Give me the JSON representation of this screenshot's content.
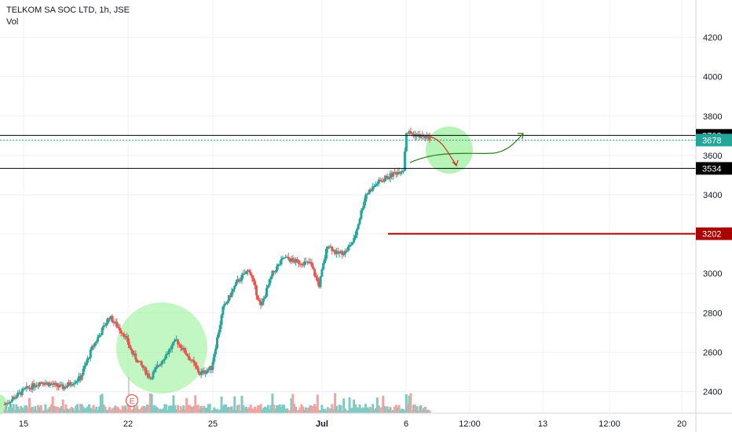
{
  "legend": {
    "title": "TELKOM SA SOC LTD, 1h, JSE",
    "indicator": "Vol"
  },
  "colors": {
    "up": "#26a69a",
    "down": "#ef5350",
    "upVol": "#7fcbc4",
    "downVol": "#f4a3a1",
    "grid": "#eef1f5",
    "axis": "#d1d4dc",
    "hline": "#000000",
    "support": "#a80000",
    "last": "#26a69a",
    "arrow": "#2e7d1a",
    "circle": "#90ee90",
    "event": "#ef5350"
  },
  "chart_data": {
    "type": "candlestick",
    "title": "TELKOM SA SOC LTD, 1h, JSE",
    "ylim": [
      2290,
      4390
    ],
    "y_ticks": [
      2400,
      2600,
      2800,
      3000,
      3200,
      3400,
      3600,
      3800,
      4000,
      4200
    ],
    "x_ticks": [
      "15",
      "22",
      "25",
      "Jul",
      "6",
      "12:00",
      "13",
      "12:00",
      "20"
    ],
    "anchors": [
      [
        0,
        2335
      ],
      [
        14,
        2410
      ],
      [
        25,
        2450
      ],
      [
        40,
        2420
      ],
      [
        52,
        2470
      ],
      [
        60,
        2620
      ],
      [
        72,
        2780
      ],
      [
        82,
        2690
      ],
      [
        88,
        2590
      ],
      [
        100,
        2470
      ],
      [
        110,
        2580
      ],
      [
        118,
        2660
      ],
      [
        128,
        2560
      ],
      [
        134,
        2490
      ],
      [
        142,
        2520
      ],
      [
        150,
        2820
      ],
      [
        160,
        2960
      ],
      [
        168,
        3020
      ],
      [
        176,
        2830
      ],
      [
        184,
        3000
      ],
      [
        192,
        3080
      ],
      [
        200,
        3060
      ],
      [
        210,
        3050
      ],
      [
        216,
        2940
      ],
      [
        222,
        3150
      ],
      [
        228,
        3100
      ],
      [
        234,
        3110
      ],
      [
        240,
        3170
      ],
      [
        248,
        3400
      ],
      [
        256,
        3460
      ],
      [
        268,
        3510
      ],
      [
        274,
        3530
      ],
      [
        276,
        3720
      ],
      [
        284,
        3700
      ],
      [
        292,
        3690
      ]
    ],
    "horizontal_levels": [
      {
        "value": 3702,
        "label": "3702",
        "color": "#000000"
      },
      {
        "value": 3534,
        "label": "3534",
        "color": "#000000"
      },
      {
        "value": 3202,
        "label": "3202",
        "color": "#a80000"
      }
    ],
    "last_price": {
      "value": 3678,
      "label": "3678"
    },
    "event_marker": {
      "label": "E"
    }
  }
}
